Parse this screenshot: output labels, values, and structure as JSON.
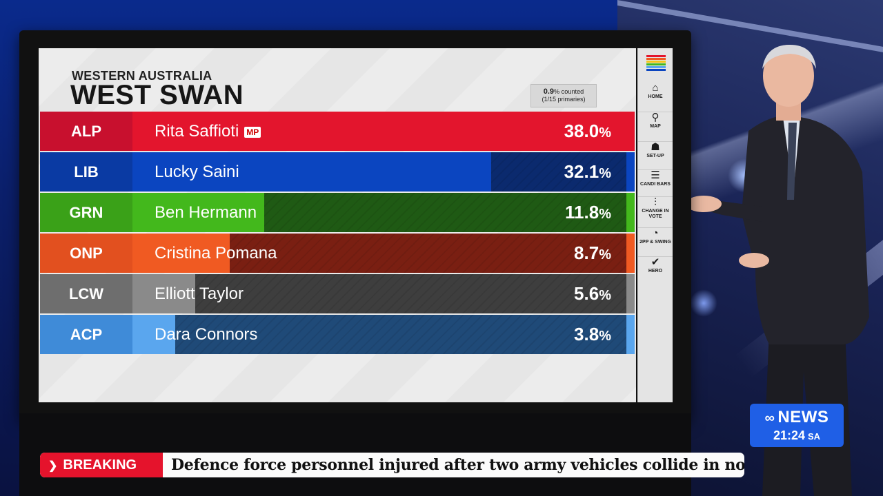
{
  "board": {
    "region": "WESTERN AUSTRALIA",
    "seat": "WEST SWAN",
    "counted_pct": "0.9",
    "counted_suffix": "% counted",
    "primaries": "(1/15 primaries)"
  },
  "candidates": [
    {
      "party": "ALP",
      "name": "Rita Saffioti",
      "badge": "MP",
      "pct_num": "38.0",
      "pct_sym": "%",
      "share": 38.0,
      "party_color": "#c8102e",
      "fill_color": "#e3152d",
      "track_color": "#e3152d",
      "cap_color": "#e3152d"
    },
    {
      "party": "LIB",
      "name": "Lucky Saini",
      "badge": "",
      "pct_num": "32.1",
      "pct_sym": "%",
      "share": 32.1,
      "party_color": "#0a3aa3",
      "fill_color": "#0b45c0",
      "track_color": "#0b2a6e",
      "cap_color": "#0b45c0"
    },
    {
      "party": "GRN",
      "name": "Ben Hermann",
      "badge": "",
      "pct_num": "11.8",
      "pct_sym": "%",
      "share": 11.8,
      "party_color": "#3aa118",
      "fill_color": "#43b81c",
      "track_color": "#1f5a14",
      "cap_color": "#43b81c"
    },
    {
      "party": "ONP",
      "name": "Cristina Pomana",
      "badge": "",
      "pct_num": "8.7",
      "pct_sym": "%",
      "share": 8.7,
      "party_color": "#e2501f",
      "fill_color": "#f05a22",
      "track_color": "#7a1f12",
      "cap_color": "#f05a22"
    },
    {
      "party": "LCW",
      "name": "Elliott Taylor",
      "badge": "",
      "pct_num": "5.6",
      "pct_sym": "%",
      "share": 5.6,
      "party_color": "#6e6e6e",
      "fill_color": "#8a8a8a",
      "track_color": "#3e3e3e",
      "cap_color": "#8a8a8a"
    },
    {
      "party": "ACP",
      "name": "Dara Connors",
      "badge": "",
      "pct_num": "3.8",
      "pct_sym": "%",
      "share": 3.8,
      "party_color": "#3f8bd8",
      "fill_color": "#5aa6ee",
      "track_color": "#1f4a78",
      "cap_color": "#5aa6ee"
    }
  ],
  "menu": [
    {
      "icon": "⌂",
      "label": "HOME",
      "name": "home-icon"
    },
    {
      "icon": "⚲",
      "label": "MAP",
      "name": "map-pin-icon"
    },
    {
      "icon": "☗",
      "label": "SET-UP",
      "name": "setup-icon"
    },
    {
      "icon": "☰",
      "label": "CANDI BARS",
      "name": "candidate-bars-icon"
    },
    {
      "icon": "⫶",
      "label": "CHANGE IN VOTE",
      "name": "change-in-vote-icon"
    },
    {
      "icon": "◔",
      "label": "2PP & SWING",
      "name": "swing-icon"
    },
    {
      "icon": "✔",
      "label": "HERO",
      "name": "hero-icon"
    }
  ],
  "logo_stripes": [
    "#e3152d",
    "#f05a22",
    "#f5c518",
    "#43b81c",
    "#5aa6ee",
    "#0b45c0"
  ],
  "abc": {
    "brand": "NEWS",
    "time": "21:24",
    "tz": "SA"
  },
  "ticker": {
    "tag": "BREAKING",
    "headline": "Defence force personnel injured after two army vehicles collide in northern NSW"
  }
}
